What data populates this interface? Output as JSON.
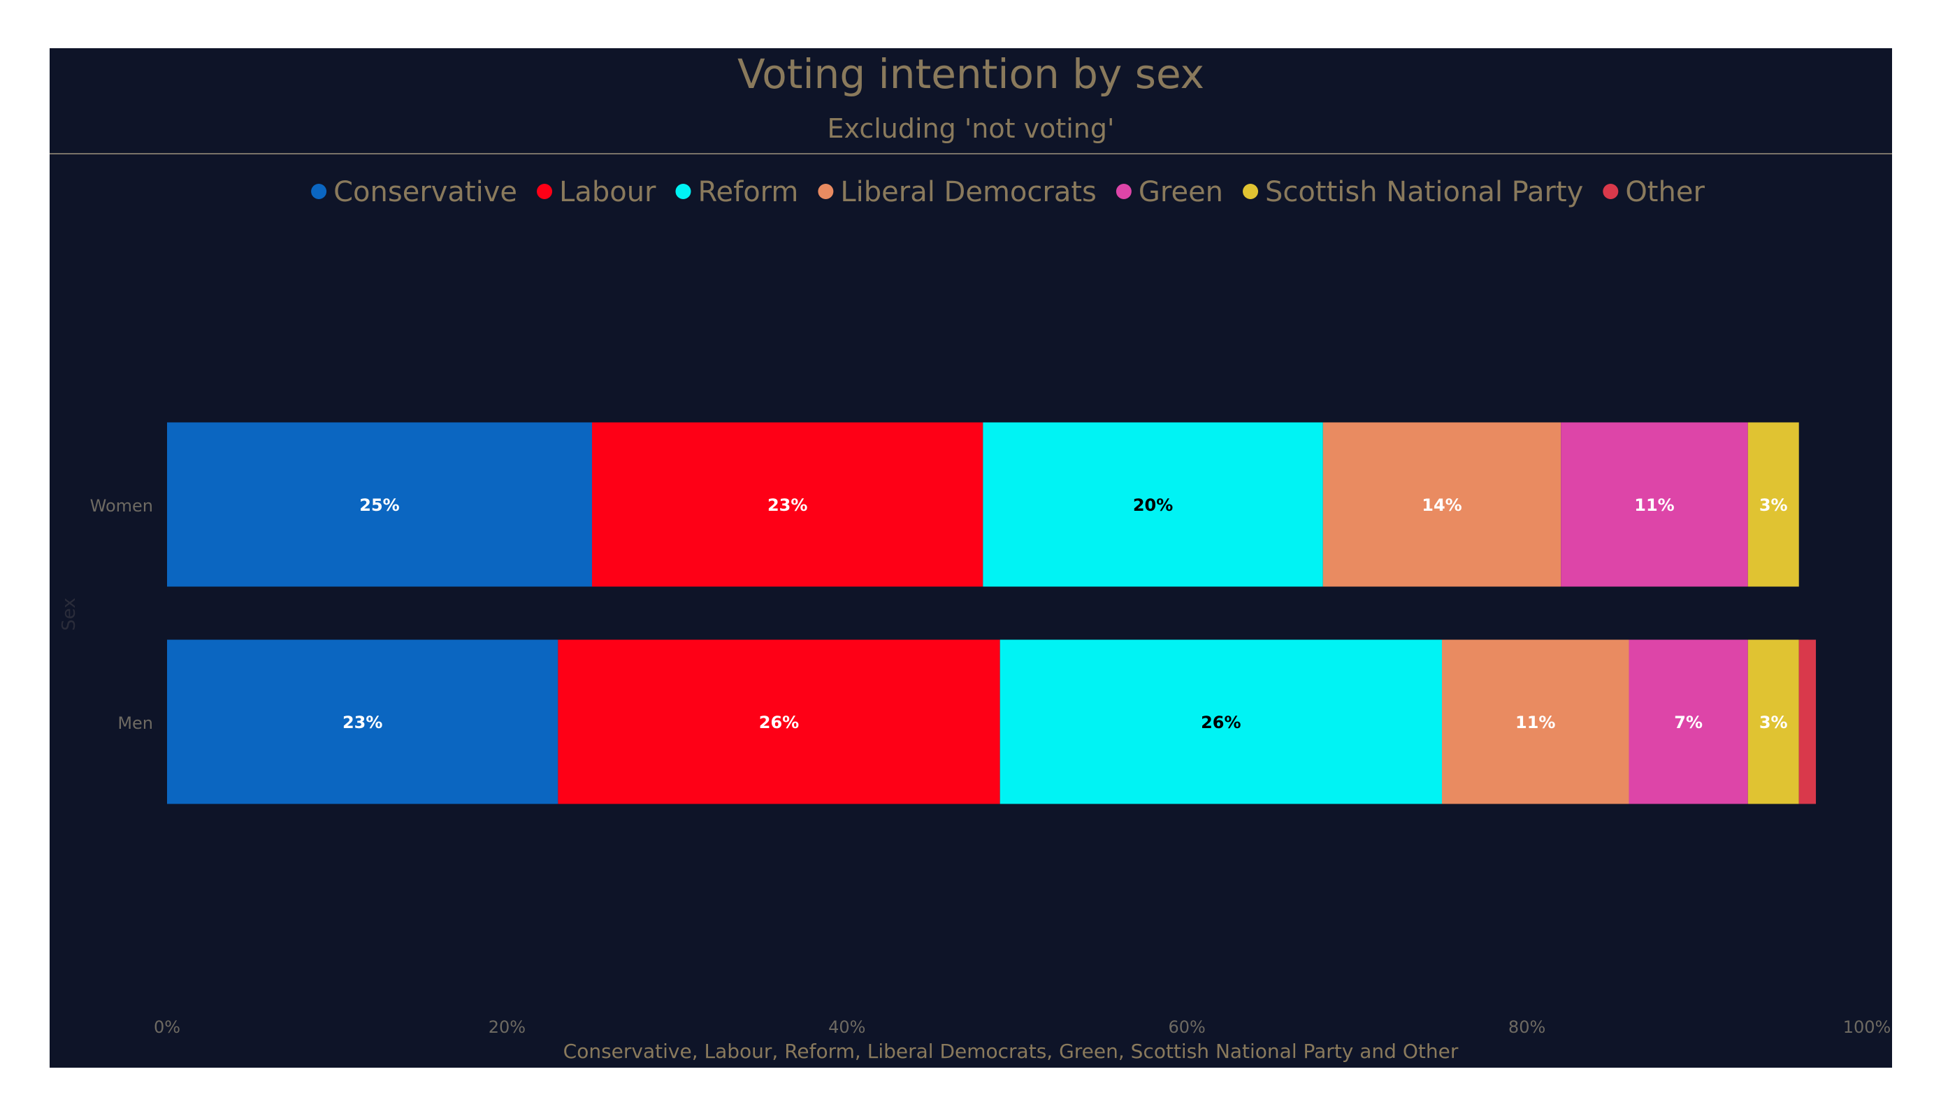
{
  "chart_data": {
    "type": "bar",
    "orientation": "horizontal",
    "stacked": true,
    "title": "Voting intention by sex",
    "subtitle": "Excluding 'not voting'",
    "xlabel": "Conservative, Labour, Reform, Liberal Democrats, Green, Scottish National Party and Other",
    "ylabel": "Sex",
    "xlim": [
      0,
      100
    ],
    "xticks": [
      "0%",
      "20%",
      "40%",
      "60%",
      "80%",
      "100%"
    ],
    "categories": [
      "Women",
      "Men"
    ],
    "legend_position": "top",
    "grid": false,
    "series": [
      {
        "name": "Conservative",
        "color": "#0b66c1",
        "values": [
          25,
          23
        ],
        "labels": [
          "25%",
          "23%"
        ],
        "label_color": "#ffffff"
      },
      {
        "name": "Labour",
        "color": "#fe0016",
        "values": [
          23,
          26
        ],
        "labels": [
          "23%",
          "26%"
        ],
        "label_color": "#ffffff"
      },
      {
        "name": "Reform",
        "color": "#00f3f4",
        "values": [
          20,
          26
        ],
        "labels": [
          "20%",
          "26%"
        ],
        "label_color": "#000000"
      },
      {
        "name": "Liberal Democrats",
        "color": "#e98b61",
        "values": [
          14,
          11
        ],
        "labels": [
          "14%",
          "11%"
        ],
        "label_color": "#ffffff"
      },
      {
        "name": "Green",
        "color": "#dd45a8",
        "values": [
          11,
          7
        ],
        "labels": [
          "11%",
          "7%"
        ],
        "label_color": "#ffffff"
      },
      {
        "name": "Scottish National Party",
        "color": "#e0c332",
        "values": [
          3,
          3
        ],
        "labels": [
          "3%",
          "3%"
        ],
        "label_color": "#ffffff"
      },
      {
        "name": "Other",
        "color": "#d9394b",
        "values": [
          0,
          1
        ],
        "labels": [
          "",
          ""
        ],
        "label_color": "#ffffff"
      }
    ]
  },
  "colors": {
    "background": "#0e1428",
    "title_text": "#8a7a5c",
    "axis_text": "#6e6a62",
    "divider": "#7a7468"
  }
}
